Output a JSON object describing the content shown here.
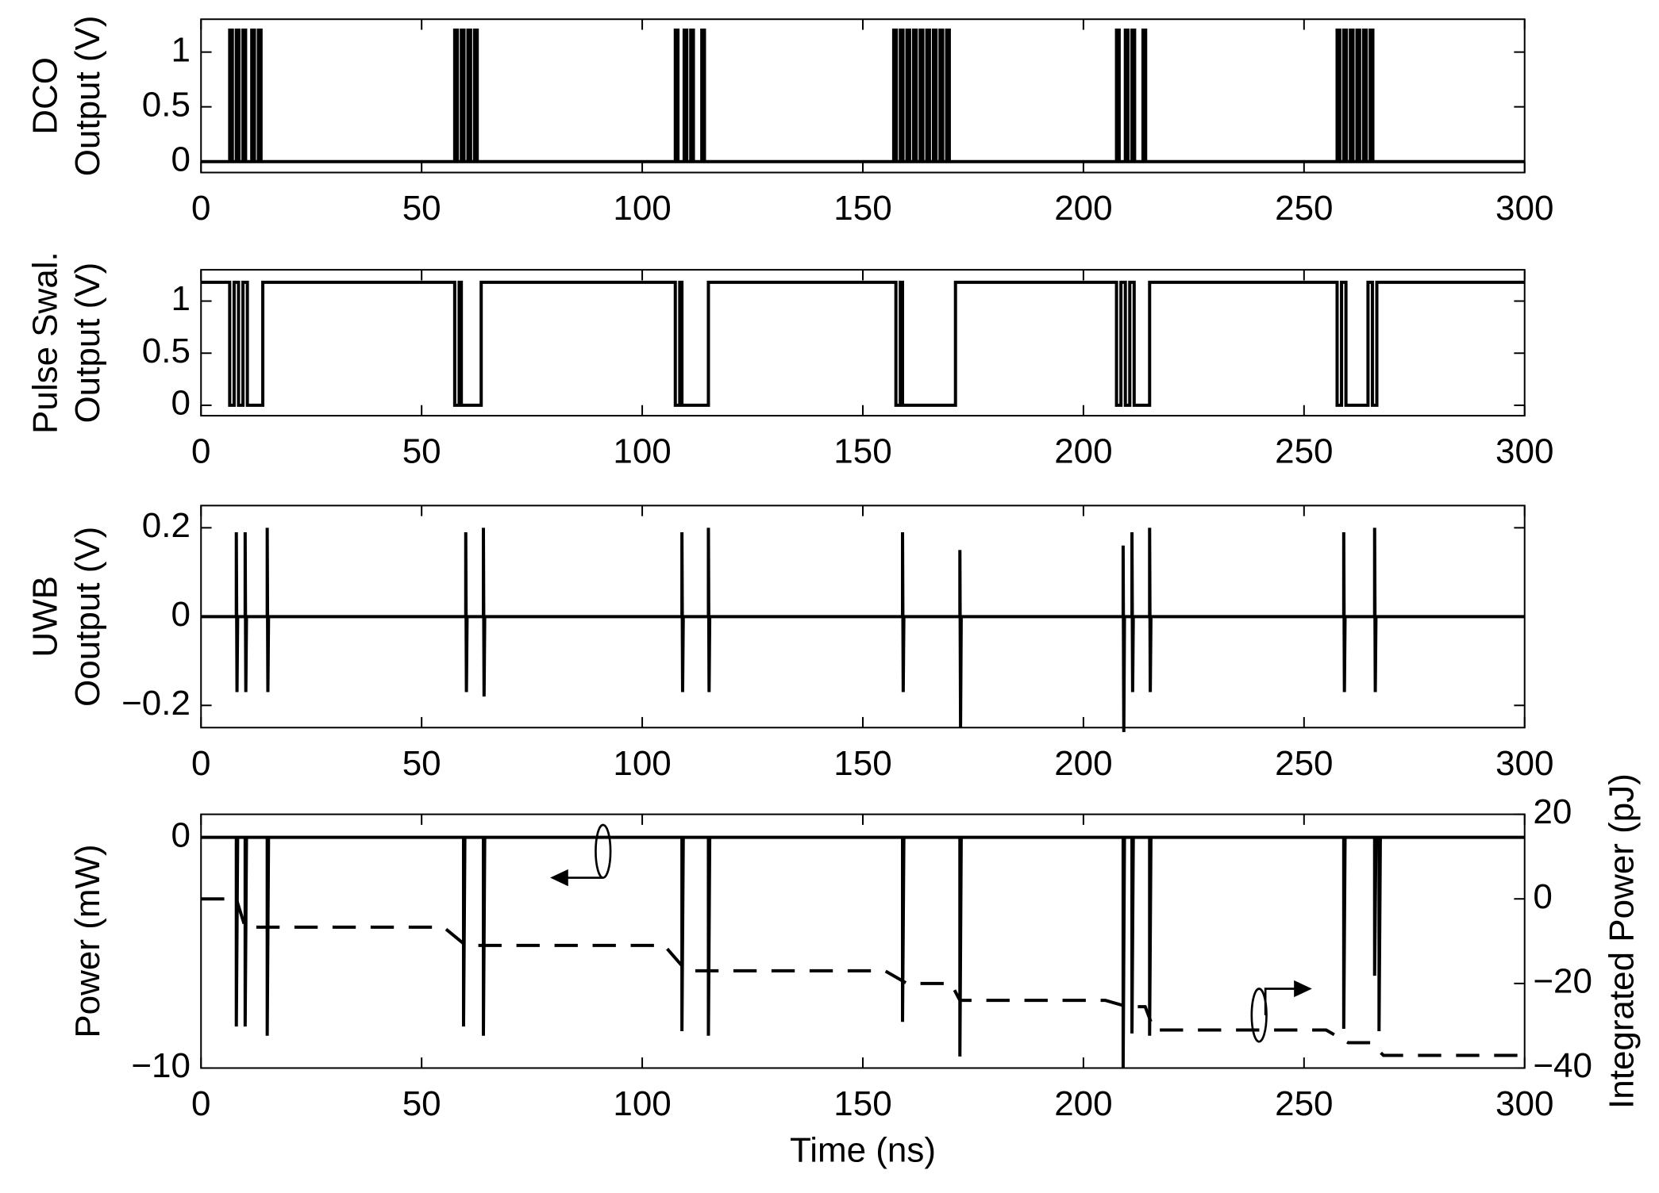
{
  "chart_data": [
    {
      "type": "line",
      "ylabel": [
        "DCO",
        "Output (V)"
      ],
      "xlim": [
        0,
        300
      ],
      "xticks": [
        0,
        50,
        100,
        150,
        200,
        250,
        300
      ],
      "ylim": [
        -0.1,
        1.3
      ],
      "yticks": [
        0,
        0.5,
        1
      ],
      "series": [
        {
          "color": "#000000",
          "x": [
            0,
            6.5,
            6.5,
            7.1,
            7.1,
            8,
            8,
            8.6,
            8.6,
            9.5,
            9.5,
            10.1,
            10.1,
            11.5,
            11.5,
            12.1,
            12.1,
            13,
            13,
            13.6,
            13.6,
            57.5,
            57.5,
            58.1,
            58.1,
            59,
            59,
            59.6,
            59.6,
            60.5,
            60.5,
            61.1,
            61.1,
            62,
            62,
            62.6,
            62.6,
            107.5,
            107.5,
            108.1,
            108.1,
            109.5,
            109.5,
            110.1,
            110.1,
            111,
            111,
            111.6,
            111.6,
            113.5,
            113.5,
            114.1,
            114.1,
            157,
            157,
            157.6,
            157.6,
            158.5,
            158.5,
            159.1,
            159.1,
            160,
            160,
            160.6,
            160.6,
            161.5,
            161.5,
            162.1,
            162.1,
            163,
            163,
            163.6,
            163.6,
            164.5,
            164.5,
            165.1,
            165.1,
            166,
            166,
            166.6,
            166.6,
            167.5,
            167.5,
            168.1,
            168.1,
            169,
            169,
            169.6,
            169.6,
            207.5,
            207.5,
            208.1,
            208.1,
            209.5,
            209.5,
            210.1,
            210.1,
            211,
            211,
            211.6,
            211.6,
            213.5,
            213.5,
            214.1,
            214.1,
            257.5,
            257.5,
            258.1,
            258.1,
            259,
            259,
            259.6,
            259.6,
            260.5,
            260.5,
            261.1,
            261.1,
            262,
            262,
            262.6,
            262.6,
            263.5,
            263.5,
            264.1,
            264.1,
            265,
            265,
            265.6,
            265.6,
            300
          ],
          "values": [
            0,
            0,
            1.2,
            1.2,
            0,
            0,
            1.2,
            1.2,
            0,
            0,
            1.2,
            1.2,
            0,
            0,
            1.2,
            1.2,
            0,
            0,
            1.2,
            1.2,
            0,
            0,
            1.2,
            1.2,
            0,
            0,
            1.2,
            1.2,
            0,
            0,
            1.2,
            1.2,
            0,
            0,
            1.2,
            1.2,
            0,
            0,
            1.2,
            1.2,
            0,
            0,
            1.2,
            1.2,
            0,
            0,
            1.2,
            1.2,
            0,
            0,
            1.2,
            1.2,
            0,
            0,
            1.2,
            1.2,
            0,
            0,
            1.2,
            1.2,
            0,
            0,
            1.2,
            1.2,
            0,
            0,
            1.2,
            1.2,
            0,
            0,
            1.2,
            1.2,
            0,
            0,
            1.2,
            1.2,
            0,
            0,
            1.2,
            1.2,
            0,
            0,
            1.2,
            1.2,
            0,
            0,
            1.2,
            1.2,
            0,
            0,
            1.2,
            1.2,
            0,
            0,
            1.2,
            1.2,
            0,
            0,
            1.2,
            1.2,
            0,
            0,
            1.2,
            1.2,
            0,
            0,
            1.2,
            1.2,
            0,
            0,
            1.2,
            1.2,
            0,
            0,
            1.2,
            1.2,
            0,
            0,
            1.2,
            1.2,
            0,
            0,
            1.2,
            1.2,
            0,
            0,
            1.2,
            1.2,
            0,
            0
          ]
        }
      ]
    },
    {
      "type": "line",
      "ylabel": [
        "Pulse Swal.",
        "Output (V)"
      ],
      "xlim": [
        0,
        300
      ],
      "xticks": [
        0,
        50,
        100,
        150,
        200,
        250,
        300
      ],
      "ylim": [
        -0.1,
        1.3
      ],
      "yticks": [
        0,
        0.5,
        1
      ],
      "series": [
        {
          "color": "#000000",
          "x": [
            0,
            6.5,
            6.5,
            7.5,
            7.5,
            8.5,
            8.5,
            9.5,
            9.5,
            10.5,
            10.5,
            14,
            14,
            57.5,
            57.5,
            58.5,
            58.5,
            59,
            59,
            63.5,
            63.5,
            107.5,
            107.5,
            108.5,
            108.5,
            109,
            109,
            115,
            115,
            157.5,
            157.5,
            158.5,
            158.5,
            159,
            159,
            171,
            171,
            207.5,
            207.5,
            208.5,
            208.5,
            209.5,
            209.5,
            210.5,
            210.5,
            211.5,
            211.5,
            215,
            215,
            257.5,
            257.5,
            258.5,
            258.5,
            259.5,
            259.5,
            264.5,
            264.5,
            265.5,
            265.5,
            266.5,
            266.5,
            300
          ],
          "values": [
            1.18,
            1.18,
            0,
            0,
            1.18,
            1.18,
            0,
            0,
            1.18,
            1.18,
            0,
            0,
            1.18,
            1.18,
            0,
            0,
            1.18,
            1.18,
            0,
            0,
            1.18,
            1.18,
            0,
            0,
            1.18,
            1.18,
            0,
            0,
            1.18,
            1.18,
            0,
            0,
            1.18,
            1.18,
            0,
            0,
            1.18,
            1.18,
            0,
            0,
            1.18,
            1.18,
            0,
            0,
            1.18,
            1.18,
            0,
            0,
            1.18,
            1.18,
            0,
            0,
            1.18,
            1.18,
            0,
            0,
            1.18,
            1.18,
            0,
            0,
            1.18,
            1.18
          ]
        }
      ]
    },
    {
      "type": "line",
      "ylabel": [
        "UWB",
        "Ooutput (V)"
      ],
      "xlim": [
        0,
        300
      ],
      "xticks": [
        0,
        50,
        100,
        150,
        200,
        250,
        300
      ],
      "ylim": [
        -0.25,
        0.25
      ],
      "yticks": [
        {
          "value": -0.2,
          "label": "−0.2"
        },
        0,
        0.2
      ],
      "series": [
        {
          "color": "#000000",
          "x": [
            0,
            8,
            8,
            8.15,
            8.3,
            10,
            10,
            10.15,
            10.3,
            15,
            15,
            15.15,
            15.3,
            60,
            60,
            60.15,
            60.3,
            64,
            64,
            64.15,
            64.3,
            109,
            109,
            109.15,
            109.3,
            115,
            115,
            115.15,
            115.3,
            159,
            159,
            159.15,
            159.3,
            172,
            172,
            172.15,
            172.3,
            209,
            209,
            209.15,
            209.3,
            211,
            211,
            211.15,
            211.3,
            215,
            215,
            215.15,
            215.3,
            259,
            259,
            259.15,
            259.3,
            266,
            266,
            266.15,
            266.3,
            300
          ],
          "values": [
            0,
            0,
            0.19,
            -0.17,
            0,
            0,
            0.19,
            -0.17,
            0,
            0,
            0.2,
            -0.17,
            0,
            0,
            0.19,
            -0.17,
            0,
            0,
            0.2,
            -0.18,
            0,
            0,
            0.19,
            -0.17,
            0,
            0,
            0.2,
            -0.17,
            0,
            0,
            0.19,
            -0.17,
            0,
            0,
            0.15,
            -0.25,
            0,
            0,
            0.16,
            -0.26,
            0,
            0,
            0.19,
            -0.17,
            0,
            0,
            0.2,
            -0.17,
            0,
            0,
            0.19,
            -0.17,
            0,
            0,
            0.2,
            -0.17,
            0,
            0
          ]
        }
      ]
    },
    {
      "type": "line",
      "ylabel": "Power (mW)",
      "y2label": "Integrated Power (pJ)",
      "xlabel": "Time (ns)",
      "xlim": [
        0,
        300
      ],
      "xticks": [
        0,
        50,
        100,
        150,
        200,
        250,
        300
      ],
      "ylim": [
        -10,
        1
      ],
      "yticks": [
        {
          "value": -10,
          "label": "−10"
        },
        0
      ],
      "y2lim": [
        -40,
        20
      ],
      "y2ticks": [
        {
          "value": -40,
          "label": "−40"
        },
        {
          "value": -20,
          "label": "−20"
        },
        0,
        20
      ],
      "series": [
        {
          "color": "#000000",
          "x": [
            0,
            8,
            8,
            8.3,
            10,
            10,
            10.3,
            15,
            15,
            15.3,
            59.5,
            59.5,
            59.8,
            64,
            64,
            64.3,
            109,
            109,
            109.3,
            115,
            115,
            115.3,
            159,
            159,
            159.3,
            172,
            172,
            172.3,
            209,
            209,
            209.3,
            211,
            211,
            211.3,
            215,
            215,
            215.3,
            259,
            259,
            259.3,
            266,
            266,
            266.3,
            267,
            267,
            267.3,
            300
          ],
          "values": [
            0,
            0,
            -8.2,
            0,
            0,
            -8.2,
            0,
            0,
            -8.6,
            0,
            0,
            -8.2,
            0,
            0,
            -8.6,
            0,
            0,
            -8.4,
            0,
            0,
            -8.6,
            0,
            0,
            -8,
            0,
            0,
            -9.5,
            0,
            0,
            -10,
            0,
            0,
            -8.5,
            0,
            0,
            -8.6,
            0,
            0,
            -8.3,
            0,
            0,
            -6,
            0,
            0,
            -8.4,
            0,
            0
          ]
        },
        {
          "color": "#000000",
          "axis": "y2",
          "dashed": true,
          "x": [
            0,
            8,
            10,
            55,
            60,
            105,
            110,
            155,
            160,
            170,
            172,
            205,
            210,
            214,
            216,
            255,
            260,
            265,
            268,
            300
          ],
          "values": [
            0,
            0,
            -6.7,
            -6.7,
            -11,
            -11,
            -17,
            -17,
            -20,
            -20,
            -24,
            -24,
            -25.5,
            -25.5,
            -31,
            -31,
            -34,
            -34,
            -37,
            -37
          ]
        }
      ]
    }
  ]
}
